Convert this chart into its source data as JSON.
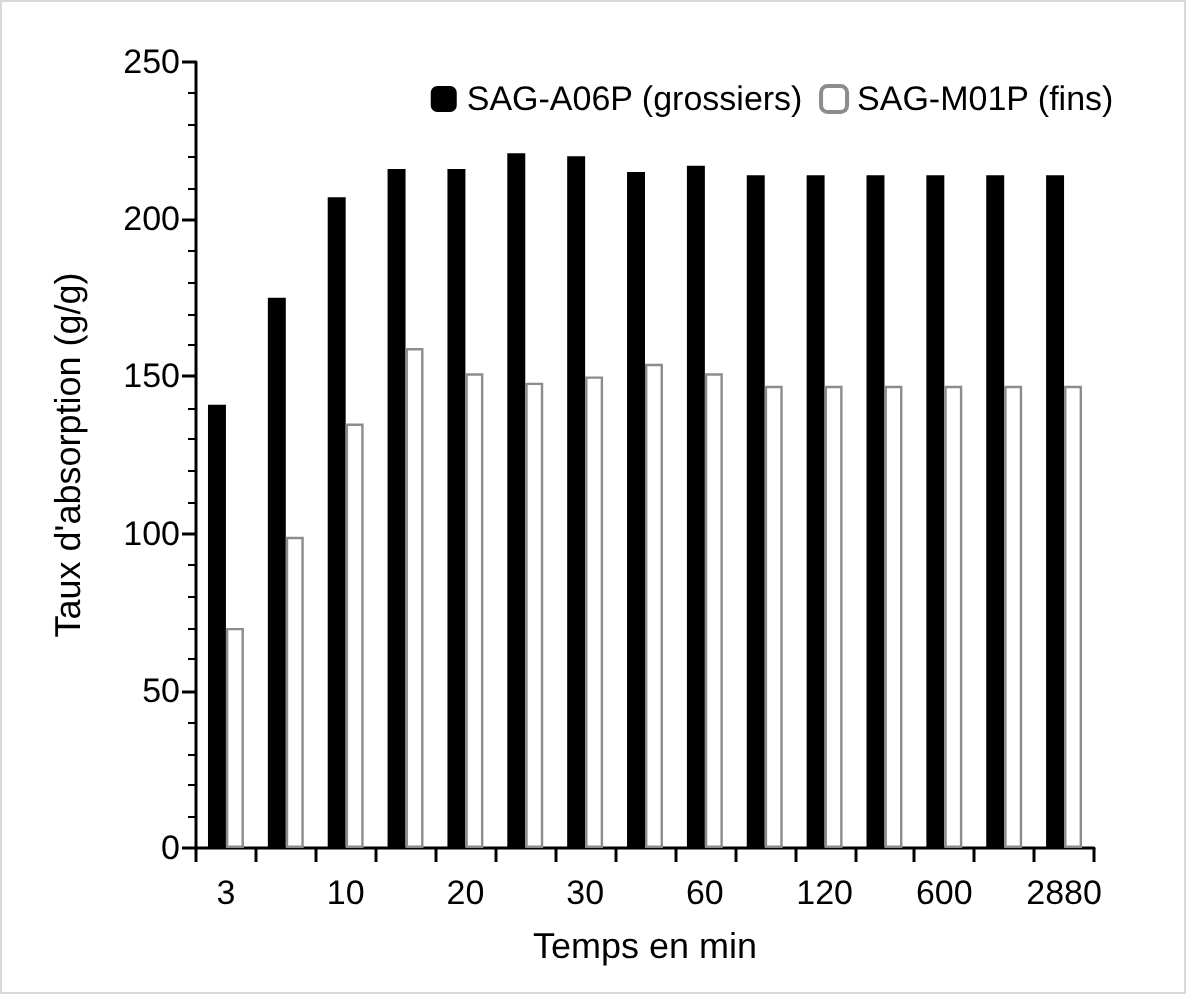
{
  "chart_data": {
    "type": "bar",
    "xlabel": "Temps en min",
    "ylabel": "Taux d'absorption (g/g)",
    "categories": [
      "3",
      null,
      "10",
      null,
      "20",
      null,
      "30",
      null,
      "60",
      null,
      "120",
      null,
      "600",
      null,
      "2880"
    ],
    "series": [
      {
        "name": "SAG-A06P (grossiers)",
        "color": "#000000",
        "values": [
          141,
          175,
          207,
          216,
          216,
          221,
          220,
          215,
          217,
          214,
          214,
          214,
          214,
          214,
          214
        ]
      },
      {
        "name": "SAG-M01P (fins)",
        "color": "#ffffff",
        "values": [
          70,
          99,
          135,
          159,
          151,
          148,
          150,
          154,
          151,
          147,
          147,
          147,
          147,
          147,
          147
        ]
      }
    ],
    "ylim": [
      0,
      250
    ],
    "yticks": [
      0,
      50,
      100,
      150,
      200,
      250
    ],
    "grid": false,
    "legend": "top right"
  }
}
